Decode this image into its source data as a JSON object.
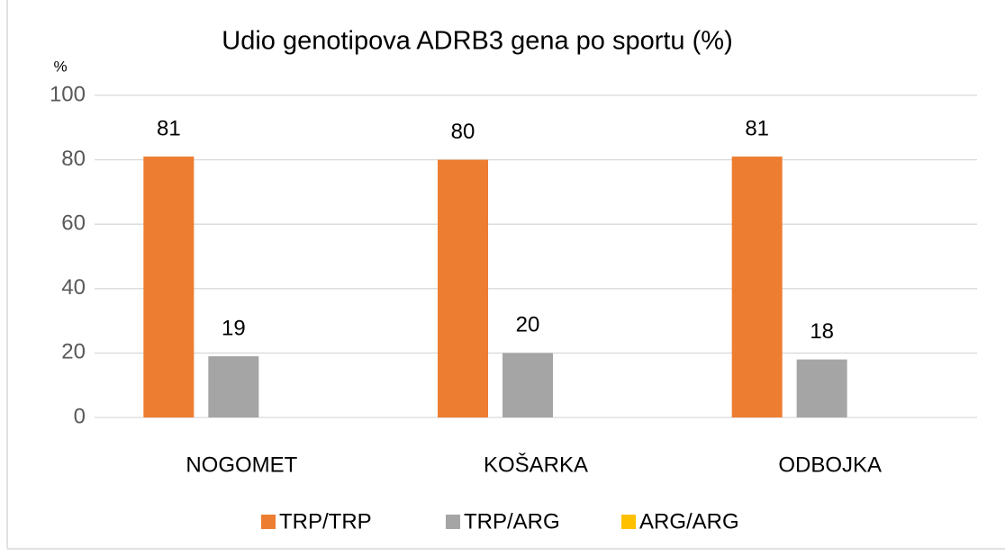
{
  "chart_data": {
    "type": "bar",
    "title": "Udio genotipova ADRB3 gena po sportu (%)",
    "y_label": "%",
    "categories": [
      "NOGOMET",
      "KOŠARKA",
      "ODBOJKA"
    ],
    "series": [
      {
        "name": "TRP/TRP",
        "color": "#ed7d31",
        "values": [
          81,
          80,
          81
        ],
        "data_labels": true
      },
      {
        "name": "TRP/ARG",
        "color": "#a5a5a5",
        "values": [
          19,
          20,
          18
        ],
        "data_labels": true
      },
      {
        "name": "ARG/ARG",
        "color": "#ffc000",
        "values": [
          0,
          0,
          0
        ],
        "data_labels": false
      }
    ],
    "ylim": [
      0,
      100
    ],
    "yticks": [
      0,
      20,
      40,
      60,
      80,
      100
    ],
    "grid": true,
    "legend": "bottom"
  }
}
